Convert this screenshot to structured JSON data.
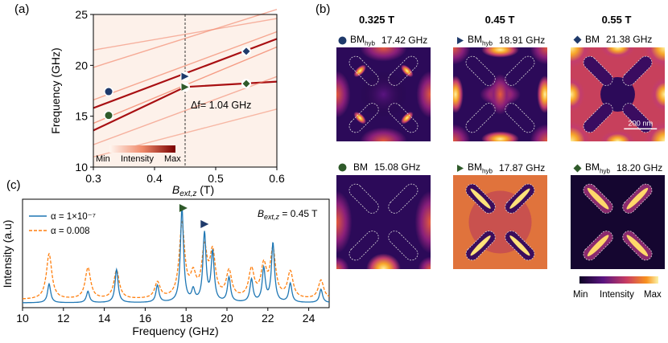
{
  "panels": {
    "a": {
      "label": "(a)",
      "ylabel": "Frequency (GHz)",
      "xlabel_main": "B",
      "xlabel_sub": "ext,z",
      "xlabel_unit": " (T)",
      "yticks": [
        "25",
        "20",
        "15",
        "10"
      ],
      "xticks": [
        "0.3",
        "0.4",
        "0.5",
        "0.6"
      ],
      "annotation": "Δf= 1.04 GHz",
      "colorbar": {
        "min": "Min",
        "mid": "Intensity",
        "max": "Max"
      }
    },
    "b": {
      "label": "(b)",
      "fields": [
        "0.325 T",
        "0.45 T",
        "0.55 T"
      ],
      "scale_bar": "200 nm",
      "colorbar": {
        "min": "Min",
        "mid": "Intensity",
        "max": "Max"
      },
      "modes": [
        {
          "name": "BM",
          "sub": "hyb",
          "freq": "17.42 GHz",
          "marker": "circle",
          "color": "#1f3a6b"
        },
        {
          "name": "BM",
          "sub": "hyb",
          "freq": "18.91 GHz",
          "marker": "triangle",
          "color": "#1f3a6b"
        },
        {
          "name": "BM",
          "sub": "",
          "freq": "21.38 GHz",
          "marker": "diamond",
          "color": "#1f3a6b"
        },
        {
          "name": "BM",
          "sub": "",
          "freq": "15.08 GHz",
          "marker": "circle",
          "color": "#2f5a2a"
        },
        {
          "name": "BM",
          "sub": "hyb",
          "freq": "17.87 GHz",
          "marker": "triangle",
          "color": "#2f5a2a"
        },
        {
          "name": "BM",
          "sub": "hyb",
          "freq": "18.20 GHz",
          "marker": "diamond",
          "color": "#2f5a2a"
        }
      ]
    },
    "c": {
      "label": "(c)",
      "ylabel": "Intensity (a.u)",
      "xlabel": "Frequency (GHz)",
      "xticks": [
        "10",
        "12",
        "14",
        "16",
        "18",
        "20",
        "22",
        "24"
      ],
      "legend": [
        {
          "label": "α = 1×10⁻⁷",
          "color": "#1f77b4",
          "style": "solid"
        },
        {
          "label": "α = 0.008",
          "color": "#ff7f0e",
          "style": "dashed"
        }
      ],
      "annotation_main": "B",
      "annotation_sub": "ext,z",
      "annotation_value": " = 0.45 T"
    }
  },
  "chart_data": [
    {
      "type": "line",
      "title": "",
      "xlabel": "B_ext,z (T)",
      "ylabel": "Frequency (GHz)",
      "xlim": [
        0.3,
        0.6
      ],
      "ylim": [
        10,
        25
      ],
      "vertical_line_x": 0.45,
      "markers": [
        {
          "x": 0.325,
          "y": 17.42,
          "shape": "circle",
          "color": "#1f3a6b"
        },
        {
          "x": 0.45,
          "y": 18.91,
          "shape": "triangle",
          "color": "#1f3a6b"
        },
        {
          "x": 0.55,
          "y": 21.38,
          "shape": "diamond",
          "color": "#1f3a6b"
        },
        {
          "x": 0.325,
          "y": 15.08,
          "shape": "circle",
          "color": "#2f5a2a"
        },
        {
          "x": 0.45,
          "y": 17.87,
          "shape": "triangle",
          "color": "#2f5a2a"
        },
        {
          "x": 0.55,
          "y": 18.2,
          "shape": "diamond",
          "color": "#2f5a2a"
        }
      ],
      "branches": [
        {
          "x": [
            0.3,
            0.6
          ],
          "y": [
            15.8,
            22.6
          ],
          "strength": 1.0
        },
        {
          "x": [
            0.3,
            0.45,
            0.6
          ],
          "y": [
            13.6,
            17.87,
            18.4
          ],
          "strength": 1.0
        },
        {
          "x": [
            0.3,
            0.6
          ],
          "y": [
            14.3,
            21.8
          ],
          "strength": 0.45
        },
        {
          "x": [
            0.3,
            0.6
          ],
          "y": [
            16.6,
            23.3
          ],
          "strength": 0.35
        },
        {
          "x": [
            0.3,
            0.6
          ],
          "y": [
            19.8,
            25.5
          ],
          "strength": 0.3
        },
        {
          "x": [
            0.3,
            0.6
          ],
          "y": [
            21.5,
            24.6
          ],
          "strength": 0.25
        },
        {
          "x": [
            0.3,
            0.6
          ],
          "y": [
            12.2,
            18.9
          ],
          "strength": 0.25
        },
        {
          "x": [
            0.3,
            0.6
          ],
          "y": [
            11.0,
            15.7
          ],
          "strength": 0.2
        }
      ]
    },
    {
      "type": "line",
      "title": "",
      "xlabel": "Frequency (GHz)",
      "ylabel": "Intensity (a.u)",
      "xlim": [
        10,
        25
      ],
      "peaks": [
        {
          "x": 11.3,
          "a1": 0.2,
          "a2": 0.48
        },
        {
          "x": 13.2,
          "a1": 0.12,
          "a2": 0.33
        },
        {
          "x": 14.6,
          "a1": 0.35,
          "a2": 0.3
        },
        {
          "x": 16.6,
          "a1": 0.18,
          "a2": 0.17
        },
        {
          "x": 17.8,
          "a1": 1.0,
          "a2": 0.78
        },
        {
          "x": 18.35,
          "a1": 0.12,
          "a2": 0.22
        },
        {
          "x": 18.9,
          "a1": 0.72,
          "a2": 0.5
        },
        {
          "x": 19.3,
          "a1": 0.52,
          "a2": 0.46
        },
        {
          "x": 20.1,
          "a1": 0.26,
          "a2": 0.28
        },
        {
          "x": 21.2,
          "a1": 0.24,
          "a2": 0.3
        },
        {
          "x": 21.8,
          "a1": 0.35,
          "a2": 0.33
        },
        {
          "x": 22.25,
          "a1": 0.62,
          "a2": 0.5
        },
        {
          "x": 23.1,
          "a1": 0.2,
          "a2": 0.28
        },
        {
          "x": 24.6,
          "a1": 0.14,
          "a2": 0.2
        }
      ],
      "series": [
        {
          "name": "α = 1×10⁻⁷",
          "peak_key": "a1",
          "width": 0.09
        },
        {
          "name": "α = 0.008",
          "peak_key": "a2",
          "width": 0.16
        }
      ],
      "markers": [
        {
          "x": 17.87,
          "shape": "triangle",
          "color": "#2f5a2a"
        },
        {
          "x": 18.91,
          "shape": "triangle",
          "color": "#1f3a6b"
        }
      ]
    }
  ]
}
